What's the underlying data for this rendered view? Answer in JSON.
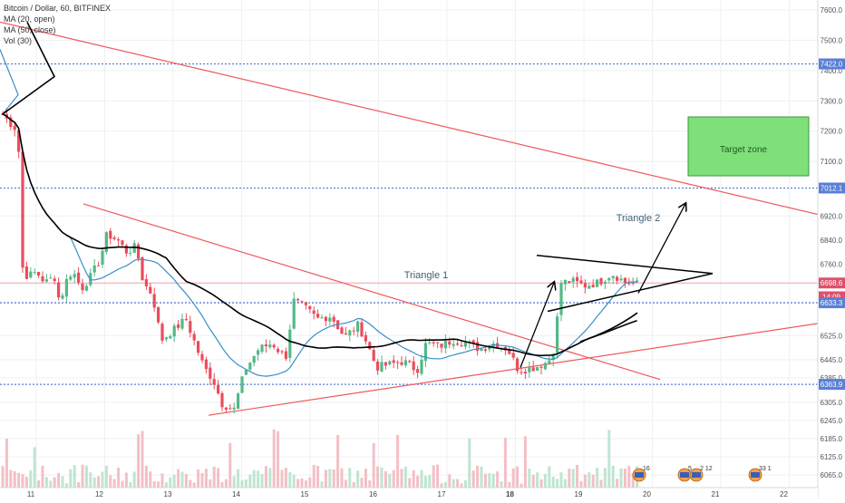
{
  "legend": {
    "symbol": "Bitcoin / Dollar, 60, BITFINEX",
    "ma20": "MA (20, open)",
    "ma50": "MA (50, close)",
    "vol": "Vol (30)"
  },
  "chart_data": {
    "type": "candlestick",
    "x_ticks": [
      "11",
      "12",
      "13",
      "14",
      "15",
      "16",
      "17",
      "18",
      "19",
      "20",
      "21",
      "22"
    ],
    "y_ticks": [
      6065.0,
      6125.0,
      6185.0,
      6245.0,
      6305.0,
      6385.0,
      6445.0,
      6525.0,
      6920.0,
      7100.0,
      7200.0,
      7300.0,
      7400.0,
      7500.0,
      7600.0
    ],
    "ylim": [
      6045,
      7620
    ],
    "price_labels": [
      {
        "value": 7422.0,
        "text": "7422.0",
        "color": "#5a7fd6"
      },
      {
        "value": 7012.1,
        "text": "7012.1",
        "color": "#5a7fd6"
      },
      {
        "value": 6698.6,
        "text": "6698.6",
        "color": "#e0506a"
      },
      {
        "value": 6653,
        "text": "14:09",
        "color": "#e0506a"
      },
      {
        "value": 6633.3,
        "text": "6633.3",
        "color": "#5a7fd6"
      },
      {
        "value": 6363.9,
        "text": "6363.9",
        "color": "#5a7fd6"
      }
    ],
    "axis_extra_labels": [
      {
        "value": 6840.0,
        "text": "6840.0"
      },
      {
        "value": 6760.0,
        "text": "6760.0"
      }
    ],
    "horizontal_levels": [
      7422.0,
      7012.1,
      6633.3,
      6363.9
    ],
    "current_price": 6698.6,
    "annotations": [
      {
        "text": "Triangle 1"
      },
      {
        "text": "Triangle 2"
      },
      {
        "text": "Target zone"
      }
    ],
    "events": [
      {
        "text": "16"
      },
      {
        "text": "5"
      },
      {
        "text": "2 12"
      },
      {
        "text": "33 1"
      }
    ]
  },
  "colors": {
    "up": "#53b987",
    "down": "#eb4d5c",
    "ma20": "#3a8fc8",
    "ma50": "#000000",
    "trend": "#ee5a5a",
    "level": "#5a7fd6",
    "target_fill": "#7fe07a",
    "target_border": "#3a9a3a"
  }
}
